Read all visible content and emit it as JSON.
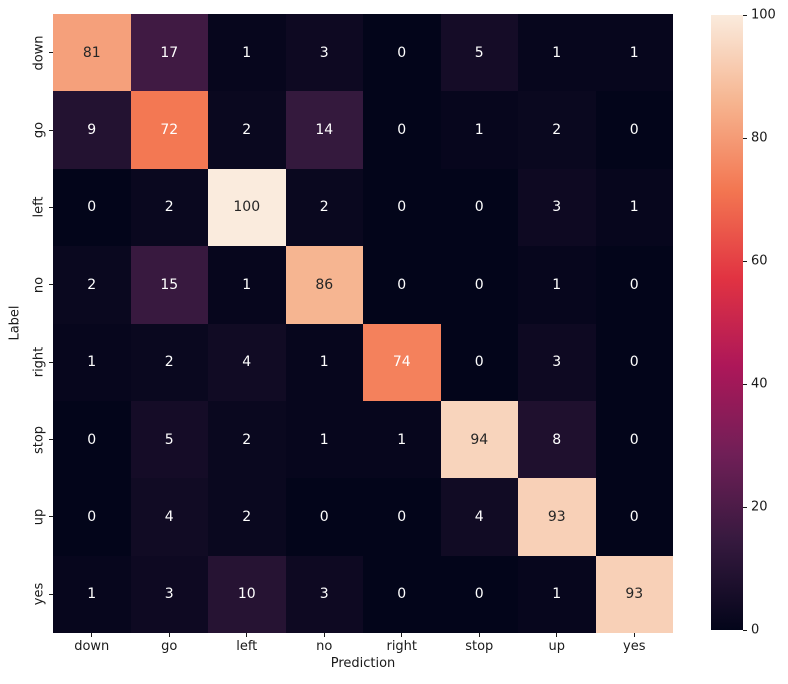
{
  "chart_data": {
    "type": "heatmap",
    "title": "",
    "xlabel": "Prediction",
    "ylabel": "Label",
    "categories_x": [
      "down",
      "go",
      "left",
      "no",
      "right",
      "stop",
      "up",
      "yes"
    ],
    "categories_y": [
      "down",
      "go",
      "left",
      "no",
      "right",
      "stop",
      "up",
      "yes"
    ],
    "values": [
      [
        81,
        17,
        1,
        3,
        0,
        5,
        1,
        1
      ],
      [
        9,
        72,
        2,
        14,
        0,
        1,
        2,
        0
      ],
      [
        0,
        2,
        100,
        2,
        0,
        0,
        3,
        1
      ],
      [
        2,
        15,
        1,
        86,
        0,
        0,
        1,
        0
      ],
      [
        1,
        2,
        4,
        1,
        74,
        0,
        3,
        0
      ],
      [
        0,
        5,
        2,
        1,
        1,
        94,
        8,
        0
      ],
      [
        0,
        4,
        2,
        0,
        0,
        4,
        93,
        0
      ],
      [
        1,
        3,
        10,
        3,
        0,
        0,
        1,
        93
      ]
    ],
    "vmin": 0,
    "vmax": 100,
    "grid": false,
    "legend_position": "colorbar-right",
    "colorbar_ticks": [
      0,
      20,
      40,
      60,
      80,
      100
    ],
    "colormap_name": "rocket",
    "colormap_anchors": [
      "#03051A",
      "#35193E",
      "#701F57",
      "#AD1759",
      "#E13342",
      "#F37651",
      "#F6B48F",
      "#FAEBDD"
    ]
  },
  "colors": {
    "background": "#ffffff",
    "tick_text": "#1a1a1a",
    "annotation_dark": "#262626",
    "annotation_light": "#ffffff"
  }
}
